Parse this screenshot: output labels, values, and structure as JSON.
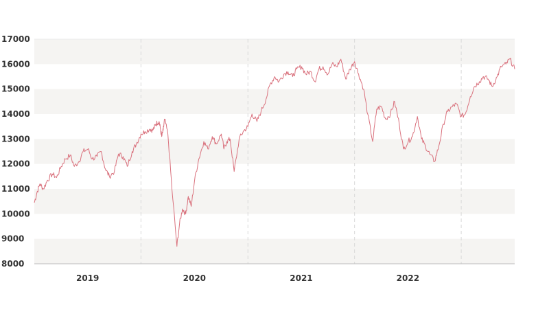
{
  "chart_data": {
    "type": "line",
    "title": "",
    "xlabel": "",
    "ylabel": "",
    "ylim": [
      8000,
      17000
    ],
    "xlim": [
      "2018-07-01",
      "2022-12-31"
    ],
    "yticks": [
      8000,
      9000,
      10000,
      11000,
      12000,
      13000,
      14000,
      15000,
      16000,
      17000
    ],
    "ytick_labels": [
      "8000",
      "9000",
      "10000",
      "11000",
      "12000",
      "13000",
      "14000",
      "15000",
      "16000",
      "17000"
    ],
    "xtick_labels": [
      "2019",
      "2020",
      "2021",
      "2022"
    ],
    "year_boundaries": [
      "2019-07-01",
      "2020-07-01",
      "2021-07-01",
      "2022-07-01"
    ],
    "grid": "alternating horizontal bands, dashed vertical year separators",
    "legend": "none",
    "colors": {
      "line": "#d9707c",
      "band": "#f5f4f2",
      "vgrid": "#d8d8d8",
      "axis": "#bdbdbd",
      "text": "#333333"
    },
    "series": [
      {
        "x": [
          "2018-07-01",
          "2018-07-10",
          "2018-07-20",
          "2018-08-01",
          "2018-08-15",
          "2018-09-01",
          "2018-09-15",
          "2018-10-01",
          "2018-10-15",
          "2018-11-01",
          "2018-11-15",
          "2018-12-01",
          "2018-12-15",
          "2019-01-01",
          "2019-01-15",
          "2019-02-01",
          "2019-02-15",
          "2019-03-01",
          "2019-03-15",
          "2019-04-01",
          "2019-04-15",
          "2019-05-01",
          "2019-05-15",
          "2019-06-01",
          "2019-06-15",
          "2019-07-01",
          "2019-07-15",
          "2019-08-01",
          "2019-08-10",
          "2019-08-20",
          "2019-08-25",
          "2019-09-01",
          "2019-09-05",
          "2019-09-10",
          "2019-09-15",
          "2019-09-20",
          "2019-10-01",
          "2019-10-15",
          "2019-11-01",
          "2019-11-10",
          "2019-11-20",
          "2019-12-01",
          "2019-12-10",
          "2019-12-20",
          "2020-01-01",
          "2020-01-15",
          "2020-02-01",
          "2020-02-15",
          "2020-03-01",
          "2020-03-15",
          "2020-04-01",
          "2020-04-10",
          "2020-04-20",
          "2020-05-01",
          "2020-05-15",
          "2020-06-01",
          "2020-06-15",
          "2020-07-01",
          "2020-07-15",
          "2020-08-01",
          "2020-08-15",
          "2020-09-01",
          "2020-09-15",
          "2020-10-01",
          "2020-10-15",
          "2020-11-01",
          "2020-11-15",
          "2020-12-01",
          "2020-12-15",
          "2021-01-01",
          "2021-01-15",
          "2021-02-01",
          "2021-02-15",
          "2021-03-01",
          "2021-03-15",
          "2021-04-01",
          "2021-04-15",
          "2021-05-01",
          "2021-05-15",
          "2021-06-01",
          "2021-06-15",
          "2021-07-01",
          "2021-07-15",
          "2021-08-01",
          "2021-08-15",
          "2021-09-01",
          "2021-09-15",
          "2021-10-01",
          "2021-10-15",
          "2021-11-01",
          "2021-11-15",
          "2021-12-01",
          "2021-12-15",
          "2022-01-01",
          "2022-01-15",
          "2022-02-01",
          "2022-02-15",
          "2022-03-01",
          "2022-03-15",
          "2022-04-01",
          "2022-04-15",
          "2022-05-01",
          "2022-05-15",
          "2022-06-01",
          "2022-06-15",
          "2022-07-01",
          "2022-07-15",
          "2022-08-01",
          "2022-08-15",
          "2022-09-01",
          "2022-09-15",
          "2022-10-01",
          "2022-10-15",
          "2022-11-01",
          "2022-11-15",
          "2022-12-01",
          "2022-12-15",
          "2022-12-31"
        ],
        "values": [
          10450,
          10850,
          11200,
          11000,
          11350,
          11600,
          11450,
          11900,
          12200,
          12350,
          11900,
          12100,
          12500,
          12600,
          12200,
          12300,
          12500,
          11800,
          11500,
          11700,
          12400,
          12300,
          11900,
          12500,
          12800,
          13200,
          13300,
          13400,
          13350,
          13550,
          13650,
          13700,
          13450,
          13100,
          13350,
          13800,
          13200,
          11000,
          8700,
          9600,
          10200,
          10000,
          10700,
          10300,
          11400,
          12200,
          12900,
          12600,
          13100,
          12800,
          13200,
          12600,
          12900,
          13000,
          11700,
          13000,
          13300,
          13500,
          14000,
          13700,
          14100,
          14600,
          15200,
          15500,
          15300,
          15600,
          15700,
          15500,
          15800,
          15900,
          15600,
          15700,
          15300,
          15800,
          15900,
          15600,
          16000,
          15900,
          16200,
          15400,
          15800,
          16100,
          15600,
          15000,
          14000,
          12900,
          14200,
          14300,
          13800,
          14000,
          14500,
          13600,
          12600,
          12900,
          13100,
          13900,
          13000,
          12700,
          12400,
          12100,
          12700,
          13600,
          14100,
          14300,
          14400,
          13900,
          14000,
          14700,
          15100,
          15300,
          15500,
          15400,
          15100,
          15500,
          15900,
          16000,
          16200,
          15800
        ]
      }
    ]
  }
}
